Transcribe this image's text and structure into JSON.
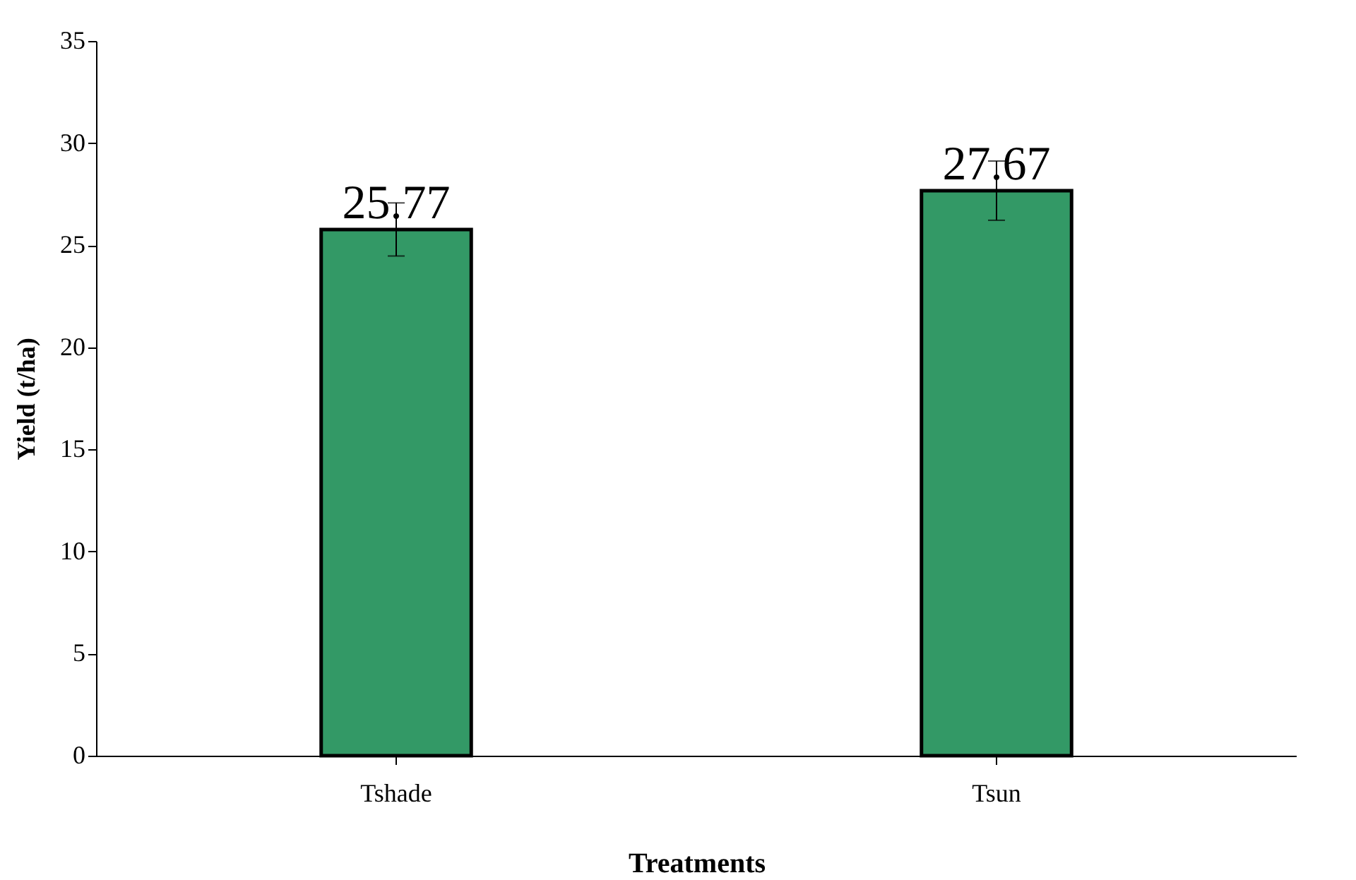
{
  "chart_data": {
    "type": "bar",
    "xlabel": "Treatments",
    "ylabel": "Yield (t/ha)",
    "categories": [
      "Tshade",
      "Tsun"
    ],
    "values": [
      25.77,
      27.67
    ],
    "errors": [
      1.3,
      1.45
    ],
    "color": "#339966",
    "ylim": [
      0,
      35
    ],
    "yticks": [
      0,
      5,
      10,
      15,
      20,
      25,
      30,
      35
    ],
    "data_labels": true,
    "grid": false
  }
}
